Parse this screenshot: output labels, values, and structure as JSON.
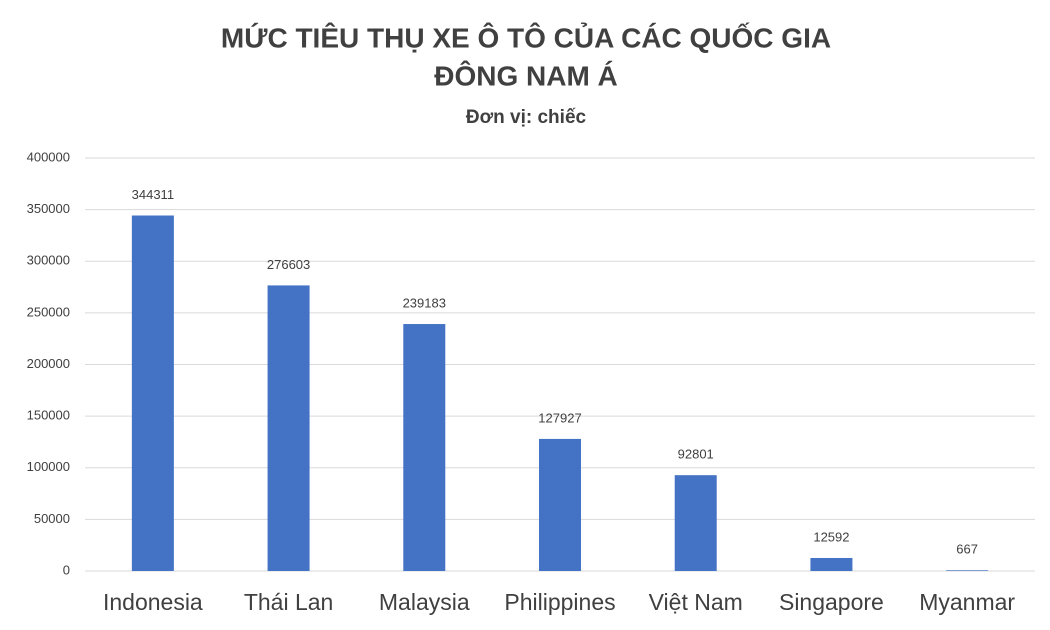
{
  "chart_data": {
    "type": "bar",
    "title": [
      "MỨC TIÊU THỤ XE Ô TÔ CỦA CÁC QUỐC GIA",
      "ĐÔNG NAM Á"
    ],
    "subtitle": "Đơn vị: chiếc",
    "categories": [
      "Indonesia",
      "Thái Lan",
      "Malaysia",
      "Philippines",
      "Việt Nam",
      "Singapore",
      "Myanmar"
    ],
    "values": [
      344311,
      276603,
      239183,
      127927,
      92801,
      12592,
      667
    ],
    "color": "#4472c4",
    "ylim": [
      0,
      400000
    ],
    "yticks": [
      0,
      50000,
      100000,
      150000,
      200000,
      250000,
      300000,
      350000,
      400000
    ],
    "grid": true
  }
}
